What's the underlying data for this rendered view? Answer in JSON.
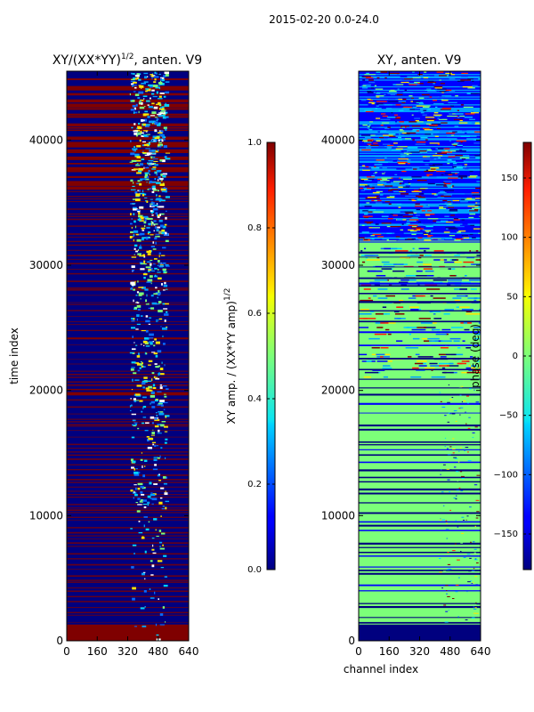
{
  "suptitle": "2015-02-20 0.0-24.0",
  "chart_data": [
    {
      "type": "heatmap",
      "title": "XY/(XX*YY)",
      "title_superscript": "1/2",
      "title_suffix": ", anten. V9",
      "xlabel": "",
      "ylabel": "time index",
      "xlim": [
        0,
        640
      ],
      "ylim": [
        0,
        45500
      ],
      "xticks": [
        0,
        160,
        320,
        480,
        640
      ],
      "yticks": [
        0,
        10000,
        20000,
        30000,
        40000
      ],
      "colorbar": {
        "label": "XY amp. / (XX*YY amp)",
        "label_superscript": "1/2",
        "range": [
          0.0,
          1.0
        ],
        "ticks": [
          "0.0",
          "0.2",
          "0.4",
          "0.6",
          "0.8",
          "1.0"
        ],
        "colormap": "jet"
      }
    },
    {
      "type": "heatmap",
      "title": "XY, anten. V9",
      "xlabel": "channel index",
      "ylabel": "",
      "xlim": [
        0,
        640
      ],
      "ylim": [
        0,
        45500
      ],
      "xticks": [
        0,
        160,
        320,
        480,
        640
      ],
      "yticks": [
        0,
        10000,
        20000,
        30000,
        40000
      ],
      "colorbar": {
        "label": "phase (deg)",
        "range": [
          -180,
          180
        ],
        "ticks": [
          "−150",
          "−100",
          "−50",
          "0",
          "50",
          "100",
          "150"
        ],
        "tick_values": [
          -150,
          -100,
          -50,
          0,
          50,
          100,
          150
        ],
        "colormap": "jet"
      }
    }
  ],
  "colors": {
    "jet_dark_blue": "#00007f",
    "jet_dark_red": "#7f0000",
    "jet_green": "#7cff79",
    "jet_cyan": "#00d4ff",
    "jet_yellow": "#ffe600"
  }
}
